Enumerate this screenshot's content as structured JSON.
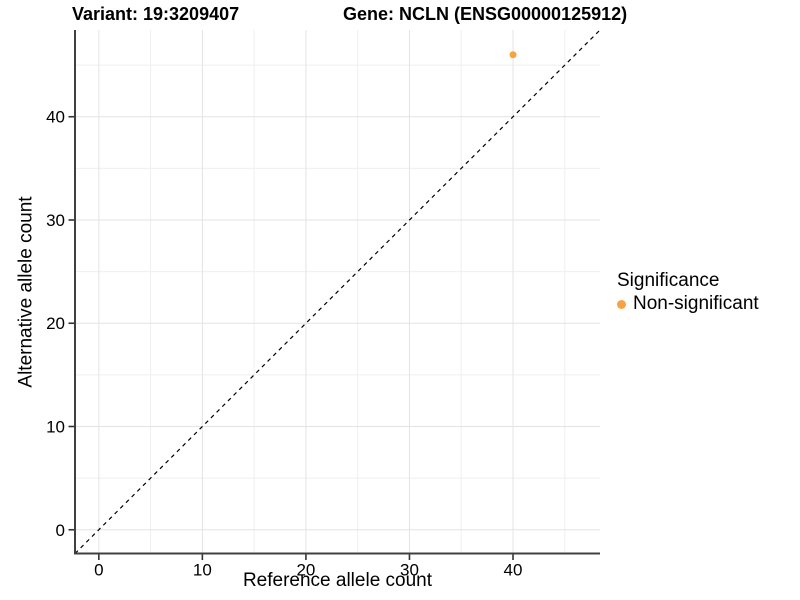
{
  "chart_data": {
    "type": "scatter",
    "title_left": "Variant: 19:3209407",
    "title_right": "Gene: NCLN (ENSG00000125912)",
    "xlabel": "Reference allele count",
    "ylabel": "Alternative allele count",
    "xlim": [
      -2.3,
      48.4
    ],
    "ylim": [
      -2.3,
      48.4
    ],
    "x_ticks": [
      0,
      10,
      20,
      30,
      40
    ],
    "y_ticks": [
      0,
      10,
      20,
      30,
      40
    ],
    "x_minor_ticks": [
      5,
      15,
      25,
      35,
      45
    ],
    "y_minor_ticks": [
      5,
      15,
      25,
      35,
      45
    ],
    "grid": "major+minor",
    "points": [
      {
        "x": 40,
        "y": 46,
        "series": "Non-significant"
      }
    ],
    "identity_line": {
      "style": "dashed",
      "color": "#000000"
    },
    "legend": {
      "title": "Significance",
      "position": "right",
      "entries": [
        {
          "label": "Non-significant",
          "color": "#F9A242"
        }
      ]
    }
  },
  "colors": {
    "point": "#F9A242",
    "axis_line": "#404040",
    "tick_mark": "#333333",
    "grid_major": "#E3E3E3",
    "grid_minor": "#EFEFEF",
    "identity_line": "#000000",
    "text": "#000000",
    "background": "#FFFFFF"
  }
}
